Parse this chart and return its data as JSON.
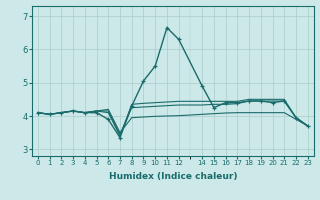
{
  "xlabel": "Humidex (Indice chaleur)",
  "ylabel": "",
  "bg_color": "#cce8e8",
  "grid_color": "#aacccc",
  "line_color": "#1a6b6b",
  "xlim": [
    -0.5,
    23.5
  ],
  "ylim": [
    2.8,
    7.3
  ],
  "yticks": [
    3,
    4,
    5,
    6,
    7
  ],
  "xtick_positions": [
    0,
    1,
    2,
    3,
    4,
    5,
    6,
    7,
    8,
    9,
    10,
    11,
    12,
    14,
    15,
    16,
    17,
    18,
    19,
    20,
    21,
    22,
    23
  ],
  "xtick_labels": [
    "0",
    "1",
    "2",
    "3",
    "4",
    "5",
    "6",
    "7",
    "8",
    "9",
    "10",
    "11",
    "12",
    "14",
    "15",
    "16",
    "17",
    "18",
    "19",
    "20",
    "21",
    "22",
    "23"
  ],
  "series": [
    {
      "x": [
        0,
        1,
        2,
        3,
        4,
        5,
        6,
        7,
        8,
        9,
        10,
        11,
        12,
        14,
        15,
        16,
        17,
        18,
        19,
        20,
        21,
        22,
        23
      ],
      "y": [
        4.1,
        4.05,
        4.1,
        4.15,
        4.1,
        4.1,
        3.9,
        3.35,
        4.3,
        5.05,
        5.5,
        6.65,
        6.3,
        4.9,
        4.25,
        4.4,
        4.4,
        4.45,
        4.45,
        4.4,
        4.45,
        3.95,
        3.7
      ],
      "marker": true,
      "lw": 1.0
    },
    {
      "x": [
        0,
        1,
        2,
        3,
        4,
        5,
        6,
        7,
        8,
        9,
        10,
        11,
        12,
        14,
        15,
        16,
        17,
        18,
        19,
        20,
        21,
        22,
        23
      ],
      "y": [
        4.1,
        4.05,
        4.1,
        4.15,
        4.1,
        4.15,
        4.1,
        3.4,
        4.35,
        4.38,
        4.4,
        4.42,
        4.44,
        4.44,
        4.44,
        4.44,
        4.44,
        4.5,
        4.5,
        4.5,
        4.5,
        3.95,
        3.7
      ],
      "marker": false,
      "lw": 0.8
    },
    {
      "x": [
        0,
        1,
        2,
        3,
        4,
        5,
        6,
        7,
        8,
        9,
        10,
        11,
        12,
        14,
        15,
        16,
        17,
        18,
        19,
        20,
        21,
        22,
        23
      ],
      "y": [
        4.1,
        4.05,
        4.1,
        4.15,
        4.1,
        4.15,
        4.15,
        3.45,
        4.25,
        4.27,
        4.29,
        4.31,
        4.33,
        4.33,
        4.35,
        4.35,
        4.37,
        4.45,
        4.45,
        4.45,
        4.45,
        3.95,
        3.7
      ],
      "marker": false,
      "lw": 0.8
    },
    {
      "x": [
        0,
        1,
        2,
        3,
        4,
        5,
        6,
        7,
        8,
        9,
        10,
        11,
        12,
        14,
        15,
        16,
        17,
        18,
        19,
        20,
        21,
        22,
        23
      ],
      "y": [
        4.1,
        4.05,
        4.1,
        4.15,
        4.1,
        4.15,
        4.2,
        3.5,
        3.95,
        3.97,
        3.99,
        4.0,
        4.01,
        4.05,
        4.07,
        4.09,
        4.1,
        4.1,
        4.1,
        4.1,
        4.1,
        3.9,
        3.7
      ],
      "marker": false,
      "lw": 0.8
    }
  ]
}
